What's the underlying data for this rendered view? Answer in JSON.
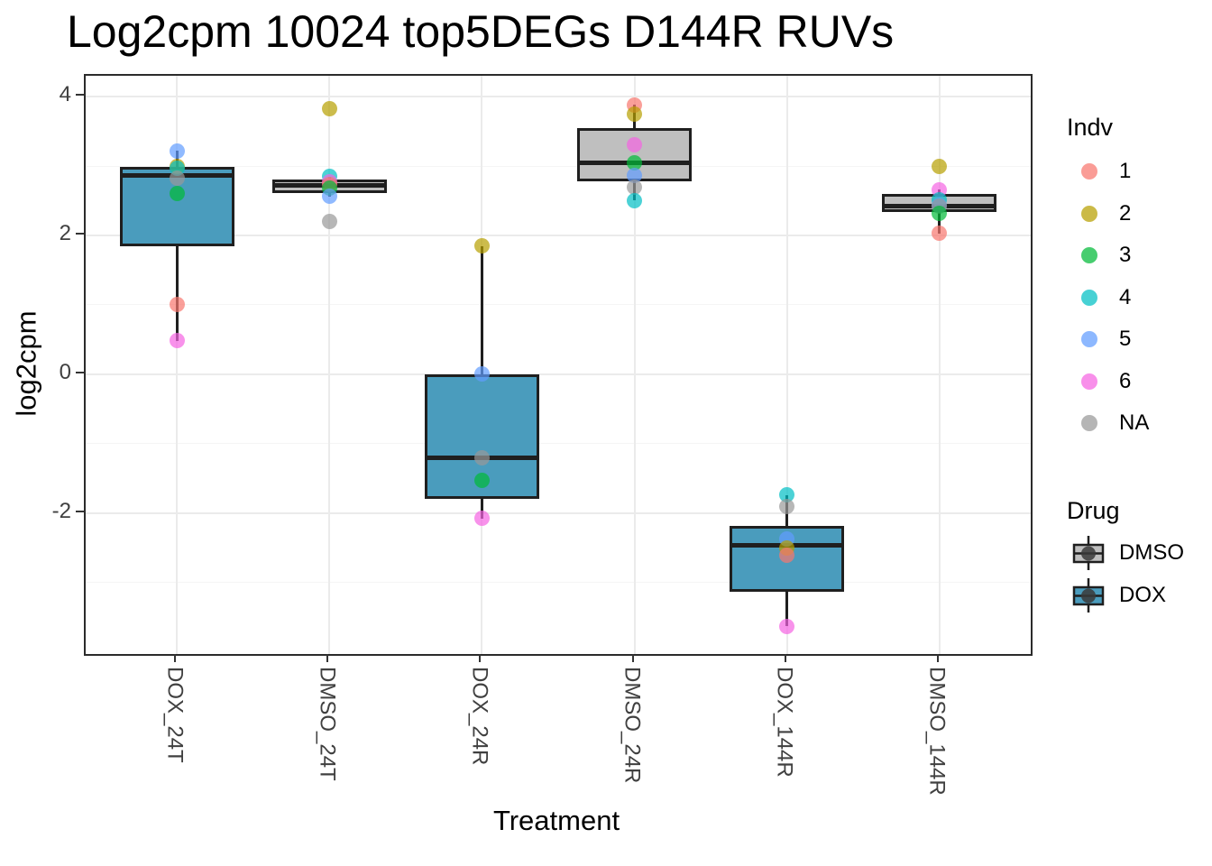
{
  "title": "Log2cpm 10024 top5DEGs D144R RUVs",
  "chart_data": {
    "type": "boxplot",
    "title": "Log2cpm 10024 top5DEGs D144R RUVs",
    "xlabel": "Treatment",
    "ylabel": "log2cpm",
    "ylim": [
      -4.03,
      4.3
    ],
    "yticks": [
      4,
      2,
      0,
      -2
    ],
    "yticks_minor": [
      3,
      1,
      -1,
      -3
    ],
    "grid": "major and minor horizontal, major vertical at categories",
    "legend_position": "right",
    "categories": [
      "DOX_24T",
      "DMSO_24T",
      "DOX_24R",
      "DMSO_24R",
      "DOX_144R",
      "DMSO_144R"
    ],
    "groups": [
      {
        "label": "DOX_24T",
        "drug": "DOX",
        "box": {
          "whisker_low": 0.48,
          "q1": 1.84,
          "median": 2.86,
          "q3": 2.99,
          "whisker_high": 3.22
        },
        "points": [
          {
            "indv": "5",
            "value": 3.22
          },
          {
            "indv": "2",
            "value": 3.0
          },
          {
            "indv": "4",
            "value": 2.97
          },
          {
            "indv": "NA",
            "value": 2.83
          },
          {
            "indv": "3",
            "value": 2.6
          },
          {
            "indv": "1",
            "value": 1.01
          },
          {
            "indv": "6",
            "value": 0.48
          }
        ]
      },
      {
        "label": "DMSO_24T",
        "drug": "DMSO",
        "box": {
          "whisker_low": 2.56,
          "q1": 2.61,
          "median": 2.72,
          "q3": 2.81,
          "whisker_high": 2.85
        },
        "points": [
          {
            "indv": "2",
            "value": 3.83
          },
          {
            "indv": "4",
            "value": 2.85
          },
          {
            "indv": "6",
            "value": 2.77
          },
          {
            "indv": "1",
            "value": 2.74
          },
          {
            "indv": "3",
            "value": 2.68
          },
          {
            "indv": "5",
            "value": 2.56
          },
          {
            "indv": "NA",
            "value": 2.2
          }
        ]
      },
      {
        "label": "DOX_24R",
        "drug": "DOX",
        "box": {
          "whisker_low": -2.08,
          "q1": -1.8,
          "median": -1.2,
          "q3": 0.0,
          "whisker_high": 1.85
        },
        "points": [
          {
            "indv": "2",
            "value": 1.85
          },
          {
            "indv": "5",
            "value": 0.0
          },
          {
            "indv": "NA",
            "value": -1.2
          },
          {
            "indv": "3",
            "value": -1.53
          },
          {
            "indv": "6",
            "value": -2.08
          }
        ]
      },
      {
        "label": "DMSO_24R",
        "drug": "DMSO",
        "box": {
          "whisker_low": 2.5,
          "q1": 2.78,
          "median": 3.04,
          "q3": 3.54,
          "whisker_high": 3.88
        },
        "points": [
          {
            "indv": "1",
            "value": 3.88
          },
          {
            "indv": "2",
            "value": 3.75
          },
          {
            "indv": "6",
            "value": 3.3
          },
          {
            "indv": "3",
            "value": 3.04
          },
          {
            "indv": "5",
            "value": 2.87
          },
          {
            "indv": "NA",
            "value": 2.69
          },
          {
            "indv": "4",
            "value": 2.5
          }
        ]
      },
      {
        "label": "DOX_144R",
        "drug": "DOX",
        "box": {
          "whisker_low": -3.63,
          "q1": -3.13,
          "median": -2.46,
          "q3": -2.19,
          "whisker_high": -1.74
        },
        "points": [
          {
            "indv": "4",
            "value": -1.74
          },
          {
            "indv": "NA",
            "value": -1.91
          },
          {
            "indv": "5",
            "value": -2.37
          },
          {
            "indv": "2",
            "value": -2.5
          },
          {
            "indv": "1",
            "value": -2.61
          },
          {
            "indv": "6",
            "value": -3.63
          }
        ]
      },
      {
        "label": "DMSO_144R",
        "drug": "DMSO",
        "box": {
          "whisker_low": 2.03,
          "q1": 2.34,
          "median": 2.42,
          "q3": 2.6,
          "whisker_high": 2.66
        },
        "points": [
          {
            "indv": "2",
            "value": 3.0
          },
          {
            "indv": "6",
            "value": 2.66
          },
          {
            "indv": "4",
            "value": 2.51
          },
          {
            "indv": "5",
            "value": 2.44
          },
          {
            "indv": "NA",
            "value": 2.42
          },
          {
            "indv": "3",
            "value": 2.32
          },
          {
            "indv": "1",
            "value": 2.03
          }
        ]
      }
    ]
  },
  "legend": {
    "indv": {
      "title": "Indv",
      "items": [
        {
          "label": "1",
          "color": "#F8766D"
        },
        {
          "label": "2",
          "color": "#B79F00"
        },
        {
          "label": "3",
          "color": "#00BA38"
        },
        {
          "label": "4",
          "color": "#00BFC4"
        },
        {
          "label": "5",
          "color": "#619CFF"
        },
        {
          "label": "6",
          "color": "#F564E2"
        },
        {
          "label": "NA",
          "color": "#999999"
        }
      ]
    },
    "drug": {
      "title": "Drug",
      "items": [
        {
          "label": "DMSO",
          "fill": "#BFBFBF"
        },
        {
          "label": "DOX",
          "fill": "#4A9CBD"
        }
      ]
    }
  },
  "colors": {
    "dox_fill": "#4A9CBD",
    "dmso_fill": "#BFBFBF",
    "box_stroke": "#1f1f1f",
    "grid_major": "#ebebeb",
    "grid_minor": "#f5f5f5",
    "axis_text": "#404040"
  }
}
